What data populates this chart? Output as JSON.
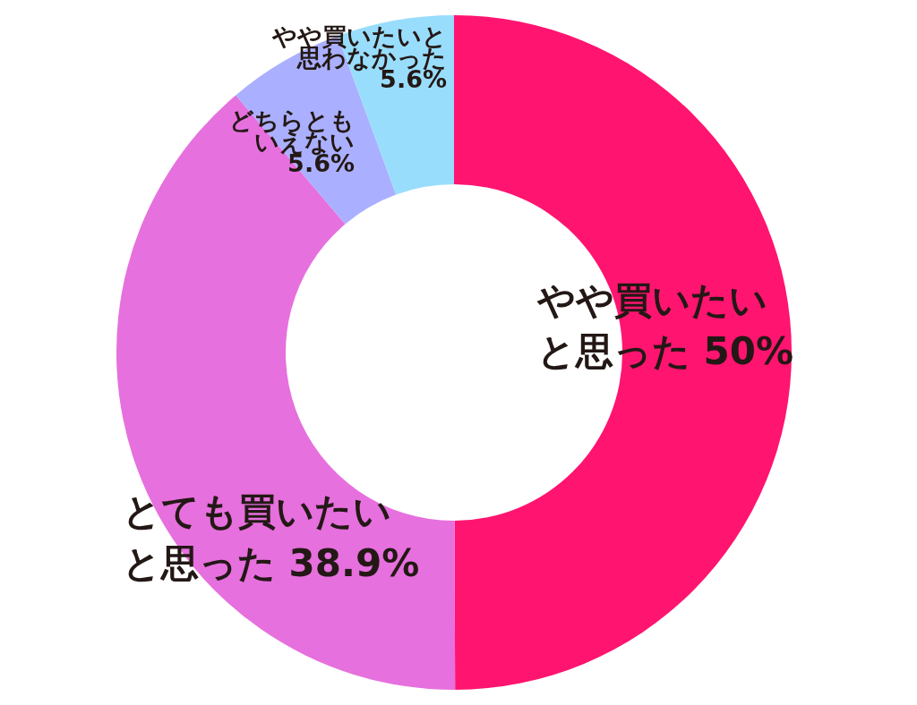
{
  "chart_data": {
    "type": "donut",
    "categories": [
      "やや買いたいと思った",
      "とても買いたいと思った",
      "どちらともいえない",
      "やや買いたいと思わなかった"
    ],
    "values": [
      50,
      38.9,
      5.6,
      5.6
    ],
    "value_labels": [
      "50%",
      "38.9%",
      "5.6%",
      "5.6%"
    ],
    "colors": [
      "#ff1470",
      "#e670dd",
      "#aab0ff",
      "#99ddfc"
    ]
  }
}
